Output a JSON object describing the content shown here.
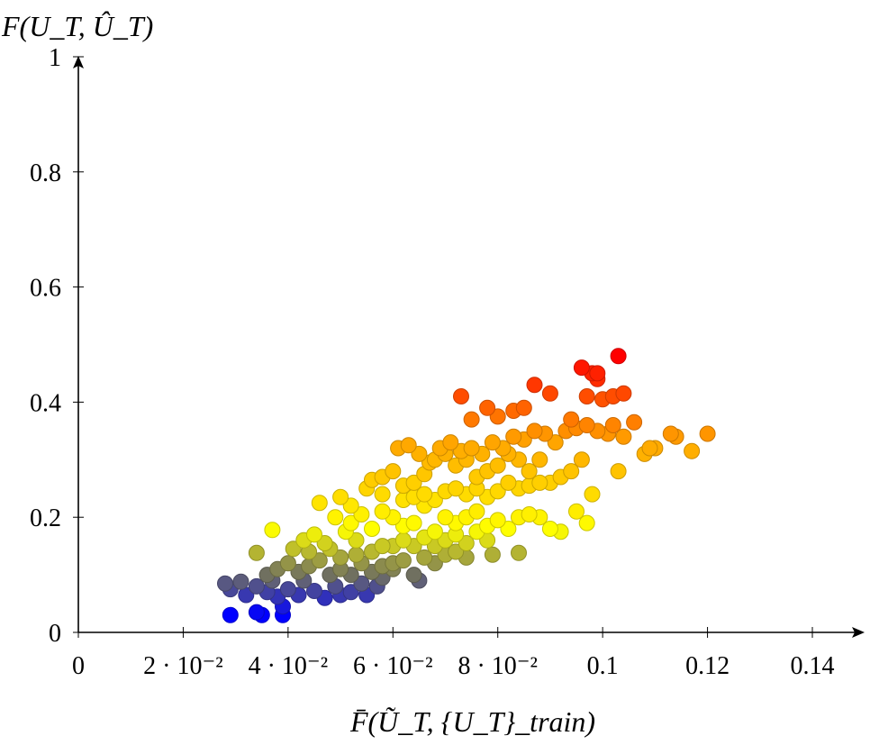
{
  "chart_data": {
    "type": "scatter",
    "title": "",
    "xlabel": "F̄(Ũ_T, {U_T}_train)",
    "ylabel": "F(U_T, Û_T)",
    "xlim": [
      0,
      0.15
    ],
    "ylim": [
      0,
      1
    ],
    "x_ticks": [
      0,
      0.02,
      0.04,
      0.06,
      0.08,
      0.1,
      0.12,
      0.14
    ],
    "x_tick_labels": [
      "0",
      "2 · 10⁻²",
      "4 · 10⁻²",
      "6 · 10⁻²",
      "8 · 10⁻²",
      "0.1",
      "0.12",
      "0.14"
    ],
    "y_ticks": [
      0,
      0.2,
      0.4,
      0.6,
      0.8,
      1
    ],
    "y_tick_labels": [
      "0",
      "0.2",
      "0.4",
      "0.6",
      "0.8",
      "1"
    ],
    "grid": false,
    "legend": "none",
    "colormap": [
      "#0000ff",
      "#707060",
      "#ffff00",
      "#ffa500",
      "#ff0000"
    ],
    "series": [
      {
        "points": [
          [
            0.029,
            0.03
          ],
          [
            0.034,
            0.035
          ],
          [
            0.035,
            0.03
          ],
          [
            0.039,
            0.03
          ],
          [
            0.039,
            0.045
          ],
          [
            0.028,
            0.085
          ],
          [
            0.029,
            0.075
          ],
          [
            0.031,
            0.088
          ],
          [
            0.032,
            0.065
          ],
          [
            0.034,
            0.08
          ],
          [
            0.036,
            0.07
          ],
          [
            0.037,
            0.09
          ],
          [
            0.038,
            0.062
          ],
          [
            0.04,
            0.075
          ],
          [
            0.042,
            0.065
          ],
          [
            0.043,
            0.09
          ],
          [
            0.045,
            0.072
          ],
          [
            0.047,
            0.06
          ],
          [
            0.049,
            0.08
          ],
          [
            0.05,
            0.065
          ],
          [
            0.052,
            0.07
          ],
          [
            0.054,
            0.085
          ],
          [
            0.055,
            0.065
          ],
          [
            0.057,
            0.08
          ],
          [
            0.058,
            0.095
          ],
          [
            0.036,
            0.1
          ],
          [
            0.038,
            0.11
          ],
          [
            0.04,
            0.12
          ],
          [
            0.034,
            0.138
          ],
          [
            0.042,
            0.105
          ],
          [
            0.044,
            0.115
          ],
          [
            0.046,
            0.125
          ],
          [
            0.048,
            0.1
          ],
          [
            0.05,
            0.11
          ],
          [
            0.052,
            0.1
          ],
          [
            0.054,
            0.12
          ],
          [
            0.056,
            0.105
          ],
          [
            0.058,
            0.115
          ],
          [
            0.06,
            0.11
          ],
          [
            0.062,
            0.125
          ],
          [
            0.064,
            0.1
          ],
          [
            0.065,
            0.09
          ],
          [
            0.066,
            0.13
          ],
          [
            0.068,
            0.12
          ],
          [
            0.07,
            0.135
          ],
          [
            0.072,
            0.14
          ],
          [
            0.074,
            0.13
          ],
          [
            0.079,
            0.135
          ],
          [
            0.084,
            0.138
          ],
          [
            0.06,
            0.12
          ],
          [
            0.037,
            0.178
          ],
          [
            0.041,
            0.145
          ],
          [
            0.043,
            0.16
          ],
          [
            0.045,
            0.17
          ],
          [
            0.047,
            0.155
          ],
          [
            0.049,
            0.2
          ],
          [
            0.051,
            0.175
          ],
          [
            0.053,
            0.16
          ],
          [
            0.046,
            0.225
          ],
          [
            0.05,
            0.235
          ],
          [
            0.052,
            0.19
          ],
          [
            0.054,
            0.205
          ],
          [
            0.056,
            0.18
          ],
          [
            0.058,
            0.21
          ],
          [
            0.06,
            0.2
          ],
          [
            0.062,
            0.185
          ],
          [
            0.064,
            0.19
          ],
          [
            0.066,
            0.22
          ],
          [
            0.068,
            0.175
          ],
          [
            0.07,
            0.2
          ],
          [
            0.072,
            0.19
          ],
          [
            0.074,
            0.2
          ],
          [
            0.076,
            0.21
          ],
          [
            0.078,
            0.185
          ],
          [
            0.08,
            0.195
          ],
          [
            0.082,
            0.18
          ],
          [
            0.084,
            0.2
          ],
          [
            0.086,
            0.205
          ],
          [
            0.088,
            0.2
          ],
          [
            0.09,
            0.18
          ],
          [
            0.092,
            0.175
          ],
          [
            0.095,
            0.21
          ],
          [
            0.097,
            0.19
          ],
          [
            0.056,
            0.265
          ],
          [
            0.058,
            0.27
          ],
          [
            0.06,
            0.28
          ],
          [
            0.062,
            0.255
          ],
          [
            0.064,
            0.26
          ],
          [
            0.066,
            0.275
          ],
          [
            0.068,
            0.3
          ],
          [
            0.07,
            0.31
          ],
          [
            0.072,
            0.29
          ],
          [
            0.074,
            0.3
          ],
          [
            0.076,
            0.27
          ],
          [
            0.078,
            0.28
          ],
          [
            0.08,
            0.29
          ],
          [
            0.082,
            0.31
          ],
          [
            0.084,
            0.3
          ],
          [
            0.086,
            0.28
          ],
          [
            0.088,
            0.3
          ],
          [
            0.09,
            0.26
          ],
          [
            0.092,
            0.27
          ],
          [
            0.094,
            0.28
          ],
          [
            0.096,
            0.3
          ],
          [
            0.098,
            0.24
          ],
          [
            0.061,
            0.32
          ],
          [
            0.063,
            0.325
          ],
          [
            0.065,
            0.31
          ],
          [
            0.067,
            0.295
          ],
          [
            0.069,
            0.32
          ],
          [
            0.071,
            0.33
          ],
          [
            0.073,
            0.315
          ],
          [
            0.075,
            0.32
          ],
          [
            0.077,
            0.31
          ],
          [
            0.079,
            0.33
          ],
          [
            0.081,
            0.32
          ],
          [
            0.083,
            0.34
          ],
          [
            0.085,
            0.335
          ],
          [
            0.087,
            0.35
          ],
          [
            0.089,
            0.345
          ],
          [
            0.091,
            0.33
          ],
          [
            0.093,
            0.35
          ],
          [
            0.095,
            0.355
          ],
          [
            0.097,
            0.36
          ],
          [
            0.099,
            0.35
          ],
          [
            0.101,
            0.345
          ],
          [
            0.102,
            0.36
          ],
          [
            0.103,
            0.28
          ],
          [
            0.104,
            0.34
          ],
          [
            0.106,
            0.365
          ],
          [
            0.108,
            0.31
          ],
          [
            0.11,
            0.32
          ],
          [
            0.075,
            0.37
          ],
          [
            0.078,
            0.39
          ],
          [
            0.08,
            0.375
          ],
          [
            0.083,
            0.385
          ],
          [
            0.085,
            0.39
          ],
          [
            0.087,
            0.43
          ],
          [
            0.09,
            0.415
          ],
          [
            0.094,
            0.37
          ],
          [
            0.097,
            0.41
          ],
          [
            0.099,
            0.44
          ],
          [
            0.1,
            0.405
          ],
          [
            0.102,
            0.41
          ],
          [
            0.104,
            0.415
          ],
          [
            0.073,
            0.41
          ],
          [
            0.096,
            0.46
          ],
          [
            0.098,
            0.45
          ],
          [
            0.099,
            0.45
          ],
          [
            0.103,
            0.48
          ],
          [
            0.113,
            0.345
          ],
          [
            0.114,
            0.34
          ],
          [
            0.117,
            0.315
          ],
          [
            0.12,
            0.345
          ],
          [
            0.109,
            0.32
          ],
          [
            0.066,
            0.24
          ],
          [
            0.068,
            0.23
          ],
          [
            0.07,
            0.245
          ],
          [
            0.072,
            0.25
          ],
          [
            0.074,
            0.24
          ],
          [
            0.076,
            0.25
          ],
          [
            0.078,
            0.235
          ],
          [
            0.08,
            0.245
          ],
          [
            0.082,
            0.26
          ],
          [
            0.084,
            0.25
          ],
          [
            0.086,
            0.255
          ],
          [
            0.088,
            0.26
          ],
          [
            0.062,
            0.23
          ],
          [
            0.064,
            0.235
          ],
          [
            0.058,
            0.24
          ],
          [
            0.055,
            0.25
          ],
          [
            0.052,
            0.22
          ],
          [
            0.06,
            0.15
          ],
          [
            0.062,
            0.16
          ],
          [
            0.064,
            0.15
          ],
          [
            0.066,
            0.165
          ],
          [
            0.068,
            0.15
          ],
          [
            0.07,
            0.16
          ],
          [
            0.072,
            0.17
          ],
          [
            0.074,
            0.155
          ],
          [
            0.076,
            0.175
          ],
          [
            0.078,
            0.16
          ],
          [
            0.044,
            0.14
          ],
          [
            0.048,
            0.145
          ],
          [
            0.056,
            0.14
          ],
          [
            0.058,
            0.15
          ],
          [
            0.053,
            0.135
          ],
          [
            0.05,
            0.13
          ]
        ]
      }
    ]
  }
}
